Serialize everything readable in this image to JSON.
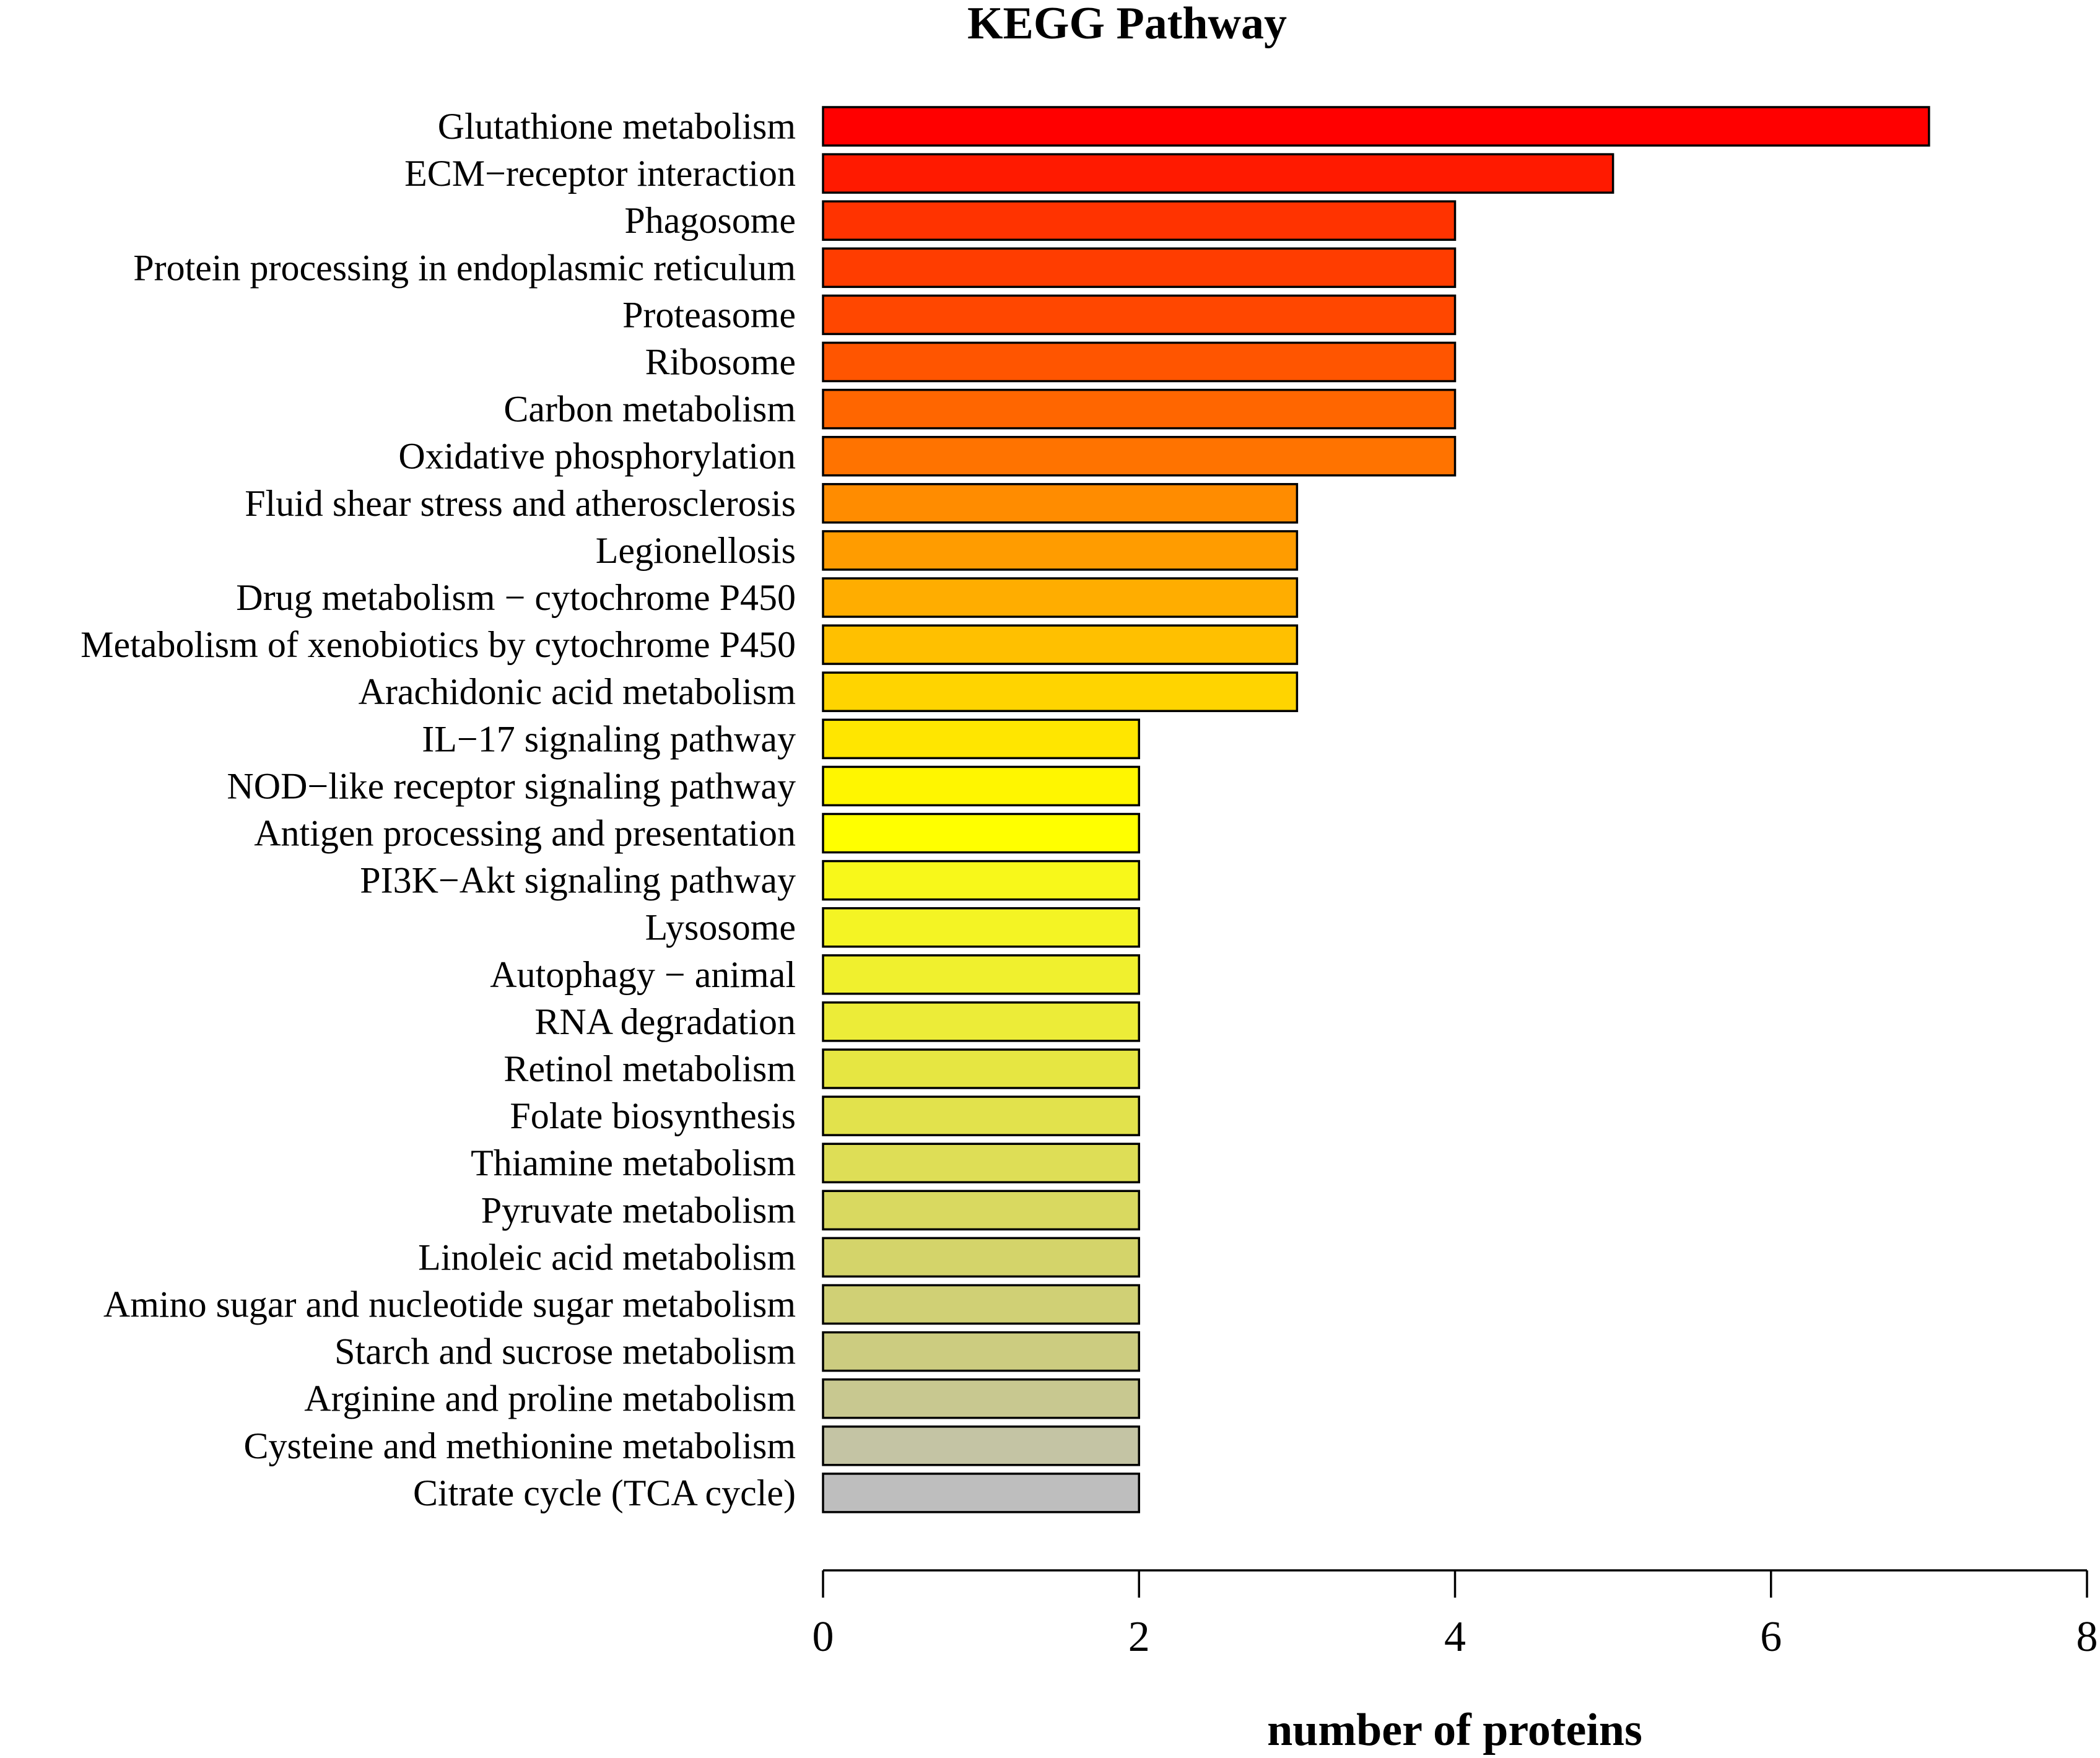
{
  "chart_data": {
    "type": "bar",
    "orientation": "horizontal",
    "title": "KEGG Pathway",
    "xlabel": "number of proteins",
    "ylabel": "",
    "xlim": [
      0,
      8
    ],
    "xticks": [
      0,
      2,
      4,
      6,
      8
    ],
    "grid": false,
    "categories": [
      "Glutathione metabolism",
      "ECM−receptor interaction",
      "Phagosome",
      "Protein processing in endoplasmic reticulum",
      "Proteasome",
      "Ribosome",
      "Carbon metabolism",
      "Oxidative phosphorylation",
      "Fluid shear stress and atherosclerosis",
      "Legionellosis",
      "Drug metabolism − cytochrome P450",
      "Metabolism of xenobiotics by cytochrome P450",
      "Arachidonic acid metabolism",
      "IL−17 signaling pathway",
      "NOD−like receptor signaling pathway",
      "Antigen processing and presentation",
      "PI3K−Akt signaling pathway",
      "Lysosome",
      "Autophagy − animal",
      "RNA degradation",
      "Retinol metabolism",
      "Folate biosynthesis",
      "Thiamine metabolism",
      "Pyruvate metabolism",
      "Linoleic acid metabolism",
      "Amino sugar and nucleotide sugar metabolism",
      "Starch and sucrose metabolism",
      "Arginine and proline metabolism",
      "Cysteine and methionine metabolism",
      "Citrate cycle (TCA cycle)"
    ],
    "values": [
      7,
      5,
      4,
      4,
      4,
      4,
      4,
      4,
      3,
      3,
      3,
      3,
      3,
      2,
      2,
      2,
      2,
      2,
      2,
      2,
      2,
      2,
      2,
      2,
      2,
      2,
      2,
      2,
      2,
      2
    ],
    "colors": [
      "#ff0000",
      "#ff1a00",
      "#ff3300",
      "#ff3d00",
      "#ff4700",
      "#ff5500",
      "#ff6600",
      "#ff7300",
      "#ff8c00",
      "#ff9c00",
      "#ffad00",
      "#ffc000",
      "#ffd400",
      "#ffe600",
      "#fff600",
      "#ffff00",
      "#f8f81a",
      "#f4f424",
      "#f0f02e",
      "#ecec38",
      "#e6e642",
      "#e2e24c",
      "#dede56",
      "#d9d960",
      "#d4d46a",
      "#d0d075",
      "#cccc80",
      "#c8c890",
      "#c4c4a4",
      "#bebebe"
    ]
  }
}
